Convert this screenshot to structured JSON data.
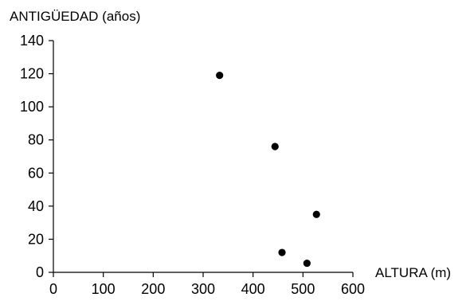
{
  "chart_data": {
    "type": "scatter",
    "title": "",
    "xlabel": "ALTURA (m)",
    "ylabel": "ANTIGÜEDAD (años)",
    "xlim": [
      0,
      600
    ],
    "ylim": [
      0,
      140
    ],
    "x_ticks": [
      0,
      100,
      200,
      300,
      400,
      500,
      600
    ],
    "y_ticks": [
      0,
      20,
      40,
      60,
      80,
      100,
      120,
      140
    ],
    "grid": false,
    "marker_color": "#000000",
    "series": [
      {
        "points": [
          {
            "x": 333,
            "y": 119
          },
          {
            "x": 444,
            "y": 76
          },
          {
            "x": 527,
            "y": 35
          },
          {
            "x": 458,
            "y": 12
          },
          {
            "x": 508,
            "y": 5.5
          }
        ]
      }
    ]
  }
}
